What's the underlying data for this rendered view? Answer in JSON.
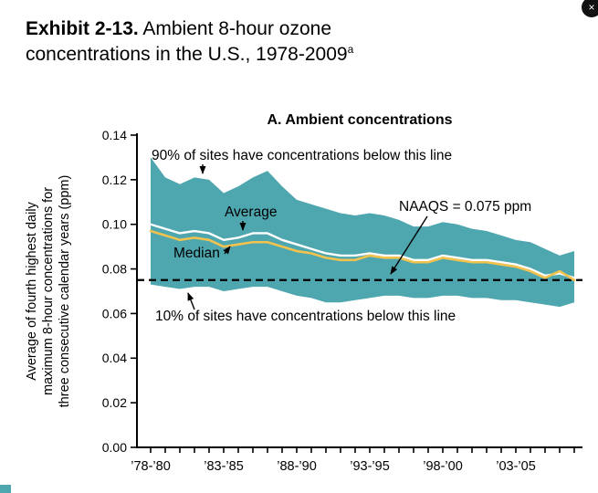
{
  "header": {
    "exhibit_label": "Exhibit 2-13.",
    "title_text": " Ambient 8-hour ozone concentrations in the U.S., 1978-2009",
    "title_superscript": "a"
  },
  "corner_icon": {
    "glyph": "×"
  },
  "chart_data": {
    "type": "area",
    "title": "A. Ambient concentrations",
    "ylabel_lines": [
      "Average of fourth highest daily",
      "maximum 8-hour concentrations for",
      "three consecutive calendar years (ppm)"
    ],
    "ylim": [
      0,
      0.14
    ],
    "ytick_step": 0.02,
    "categories": [
      "’78-’80",
      "’79-’81",
      "’80-’82",
      "’81-’83",
      "’82-’84",
      "’83-’85",
      "’84-’86",
      "’85-’87",
      "’86-’88",
      "’87-’89",
      "’88-’90",
      "’89-’91",
      "’90-’92",
      "’91-’93",
      "’92-’94",
      "’93-’95",
      "’94-’96",
      "’95-’97",
      "’96-’98",
      "’97-’99",
      "’98-’00",
      "’99-’01",
      "’00-’02",
      "’01-’03",
      "’02-’04",
      "’03-’05",
      "’04-’06",
      "’05-’07",
      "’06-’08",
      "’07-’09"
    ],
    "xtick_labels": [
      "’78-’80",
      "’83-’85",
      "’88-’90",
      "’93-’95",
      "’98-’00",
      "’03-’05"
    ],
    "xtick_label_every": 5,
    "series": [
      {
        "name": "90th percentile",
        "values": [
          0.13,
          0.121,
          0.118,
          0.121,
          0.12,
          0.114,
          0.117,
          0.121,
          0.124,
          0.117,
          0.111,
          0.109,
          0.107,
          0.105,
          0.104,
          0.105,
          0.104,
          0.102,
          0.099,
          0.099,
          0.101,
          0.1,
          0.098,
          0.097,
          0.095,
          0.093,
          0.092,
          0.089,
          0.086,
          0.088
        ]
      },
      {
        "name": "10th percentile",
        "values": [
          0.073,
          0.072,
          0.071,
          0.072,
          0.072,
          0.07,
          0.071,
          0.072,
          0.072,
          0.07,
          0.068,
          0.067,
          0.065,
          0.065,
          0.066,
          0.067,
          0.068,
          0.068,
          0.067,
          0.067,
          0.068,
          0.068,
          0.067,
          0.067,
          0.066,
          0.066,
          0.065,
          0.064,
          0.063,
          0.065
        ]
      },
      {
        "name": "Average",
        "values": [
          0.1,
          0.098,
          0.096,
          0.097,
          0.096,
          0.093,
          0.094,
          0.096,
          0.096,
          0.093,
          0.091,
          0.089,
          0.087,
          0.086,
          0.086,
          0.087,
          0.086,
          0.086,
          0.084,
          0.084,
          0.086,
          0.085,
          0.084,
          0.084,
          0.083,
          0.082,
          0.08,
          0.077,
          0.078,
          0.076
        ]
      },
      {
        "name": "Median",
        "values": [
          0.097,
          0.095,
          0.093,
          0.094,
          0.093,
          0.09,
          0.091,
          0.092,
          0.092,
          0.09,
          0.088,
          0.087,
          0.085,
          0.084,
          0.084,
          0.086,
          0.085,
          0.085,
          0.083,
          0.083,
          0.085,
          0.084,
          0.083,
          0.083,
          0.082,
          0.081,
          0.079,
          0.076,
          0.079,
          0.075
        ]
      }
    ],
    "reference_line": {
      "label": "NAAQS = 0.075 ppm",
      "value": 0.075
    },
    "annotations": {
      "p90": "90% of sites have concentrations below this line",
      "p10": "10% of sites have concentrations below this line",
      "average": "Average",
      "median": "Median"
    },
    "colors": {
      "band": "#4ea6af",
      "average_line": "#ffffff",
      "median_line": "#f2c24e",
      "reference_line": "#000000",
      "axis": "#000000"
    },
    "legend_position": "annotated-inline",
    "grid": false
  }
}
